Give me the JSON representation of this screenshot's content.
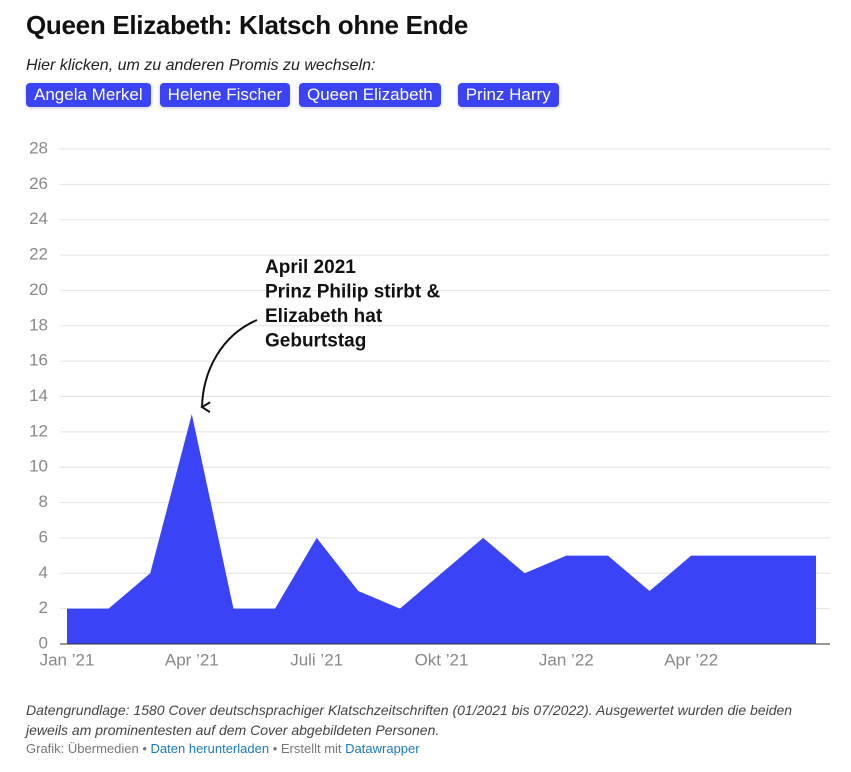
{
  "title": "Queen Elizabeth: Klatsch ohne Ende",
  "buttons_prompt": "Hier klicken, um zu anderen Promis zu wechseln:",
  "buttons": [
    "Angela Merkel",
    "Helene Fischer",
    "Queen Elizabeth",
    "Prinz Harry"
  ],
  "chart_data": {
    "type": "area",
    "categories": [
      "Jan ’21",
      null,
      null,
      "Apr ’21",
      null,
      null,
      "Juli ’21",
      null,
      null,
      "Okt ’21",
      null,
      null,
      "Jan ’22",
      null,
      null,
      "Apr ’22",
      null,
      null,
      null
    ],
    "values": [
      2,
      2,
      4,
      13,
      2,
      2,
      6,
      3,
      2,
      4,
      6,
      4,
      5,
      5,
      3,
      5,
      5,
      5,
      5
    ],
    "color": "#3a43f5",
    "ylim": [
      0,
      28
    ],
    "yticks": [
      0,
      2,
      4,
      6,
      8,
      10,
      12,
      14,
      16,
      18,
      20,
      22,
      24,
      26,
      28
    ],
    "grid": true,
    "annotation": [
      "April 2021",
      "Prinz Philip stirbt &",
      "Elizabeth hat",
      "Geburtstag"
    ]
  },
  "notes": "Datengrundlage: 1580 Cover deutschsprachiger Klatschzeitschriften (01/2021 bis 07/2022). Ausgewertet wurden die beiden jeweils am prominentesten auf dem Cover abgebildeten Personen.",
  "footer": {
    "credit": "Grafik: Übermedien",
    "separator": "•",
    "download": "Daten herunterladen",
    "made_with": "Erstellt mit",
    "tool": "Datawrapper"
  }
}
